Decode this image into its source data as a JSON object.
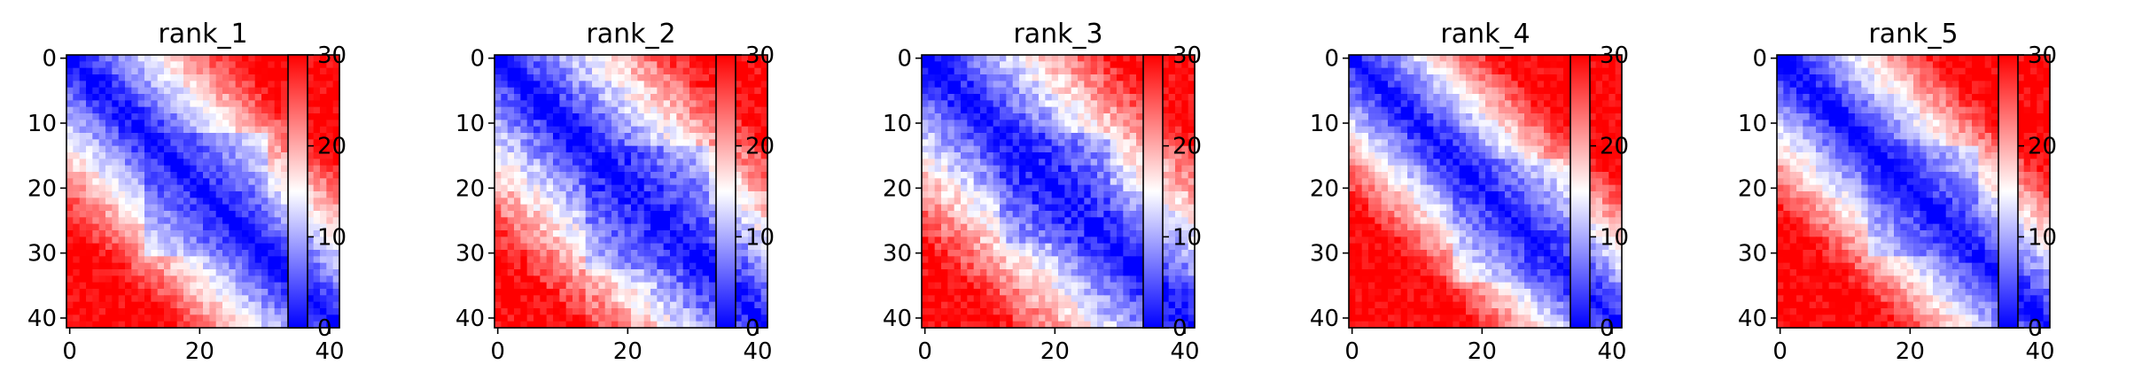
{
  "figure": {
    "colormap": [
      "#0000ff",
      "#ffffff",
      "#ff0000"
    ],
    "vmin": 0,
    "vmax": 30
  },
  "chart_data": [
    {
      "type": "heatmap",
      "title": "rank_1",
      "size": 42,
      "xlim": [
        0,
        41
      ],
      "ylim": [
        41,
        0
      ],
      "xticks": [
        0,
        20,
        40
      ],
      "xtick_labels": [
        "0",
        "20",
        "40"
      ],
      "yticks": [
        0,
        10,
        20,
        30,
        40
      ],
      "ytick_labels": [
        "0",
        "10",
        "20",
        "30",
        "40"
      ],
      "colorbar": {
        "range": [
          0,
          30
        ],
        "ticks": [
          0,
          10,
          20,
          30
        ],
        "tick_labels": [
          "0",
          "10",
          "20",
          "30"
        ]
      },
      "pattern": {
        "description_free": true,
        "band_slope": 0.9,
        "saturation_distance": 26,
        "noise": 2.5,
        "low_block": [
          12,
          30
        ],
        "low_block_factor": 0.75,
        "seed": 11
      }
    },
    {
      "type": "heatmap",
      "title": "rank_2",
      "size": 42,
      "xlim": [
        0,
        41
      ],
      "ylim": [
        41,
        0
      ],
      "xticks": [
        0,
        20,
        40
      ],
      "xtick_labels": [
        "0",
        "20",
        "40"
      ],
      "yticks": [
        0,
        10,
        20,
        30,
        40
      ],
      "ytick_labels": [
        "0",
        "10",
        "20",
        "30",
        "40"
      ],
      "colorbar": {
        "range": [
          0,
          30
        ],
        "ticks": [
          0,
          10,
          20,
          30
        ],
        "tick_labels": [
          "0",
          "10",
          "20",
          "30"
        ]
      },
      "pattern": {
        "band_slope": 0.85,
        "saturation_distance": 28,
        "noise": 3.0,
        "low_block": [
          14,
          32
        ],
        "low_block_factor": 0.7,
        "seed": 23
      }
    },
    {
      "type": "heatmap",
      "title": "rank_3",
      "size": 42,
      "xlim": [
        0,
        41
      ],
      "ylim": [
        41,
        0
      ],
      "xticks": [
        0,
        20,
        40
      ],
      "xtick_labels": [
        "0",
        "20",
        "40"
      ],
      "yticks": [
        0,
        10,
        20,
        30,
        40
      ],
      "ytick_labels": [
        "0",
        "10",
        "20",
        "30",
        "40"
      ],
      "colorbar": {
        "range": [
          0,
          30
        ],
        "ticks": [
          0,
          10,
          20,
          30
        ],
        "tick_labels": [
          "0",
          "10",
          "20",
          "30"
        ]
      },
      "pattern": {
        "band_slope": 0.85,
        "saturation_distance": 28,
        "noise": 3.0,
        "low_block": [
          12,
          28
        ],
        "low_block_factor": 0.72,
        "seed": 37
      }
    },
    {
      "type": "heatmap",
      "title": "rank_4",
      "size": 42,
      "xlim": [
        0,
        41
      ],
      "ylim": [
        41,
        0
      ],
      "xticks": [
        0,
        20,
        40
      ],
      "xtick_labels": [
        "0",
        "20",
        "40"
      ],
      "yticks": [
        0,
        10,
        20,
        30,
        40
      ],
      "ytick_labels": [
        "0",
        "10",
        "20",
        "30",
        "40"
      ],
      "colorbar": {
        "range": [
          0,
          30
        ],
        "ticks": [
          0,
          10,
          20,
          30
        ],
        "tick_labels": [
          "0",
          "10",
          "20",
          "30"
        ]
      },
      "pattern": {
        "band_slope": 0.95,
        "saturation_distance": 24,
        "noise": 2.5,
        "low_block": [
          16,
          34
        ],
        "low_block_factor": 0.78,
        "seed": 41
      }
    },
    {
      "type": "heatmap",
      "title": "rank_5",
      "size": 42,
      "xlim": [
        0,
        41
      ],
      "ylim": [
        41,
        0
      ],
      "xticks": [
        0,
        20,
        40
      ],
      "xtick_labels": [
        "0",
        "20",
        "40"
      ],
      "yticks": [
        0,
        10,
        20,
        30,
        40
      ],
      "ytick_labels": [
        "0",
        "10",
        "20",
        "30",
        "40"
      ],
      "colorbar": {
        "range": [
          0,
          30
        ],
        "ticks": [
          0,
          10,
          20,
          30
        ],
        "tick_labels": [
          "0",
          "10",
          "20",
          "30"
        ]
      },
      "pattern": {
        "band_slope": 0.92,
        "saturation_distance": 25,
        "noise": 2.5,
        "low_block": [
          14,
          30
        ],
        "low_block_factor": 0.76,
        "seed": 53
      }
    }
  ]
}
